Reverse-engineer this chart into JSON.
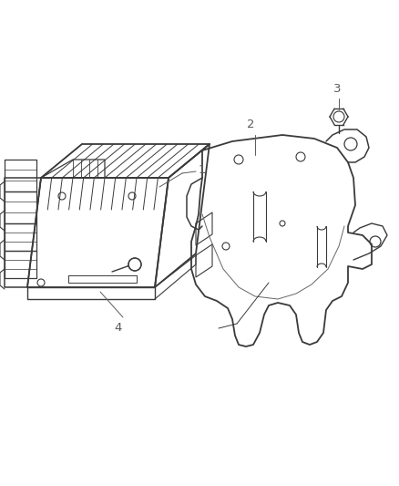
{
  "bg_color": "#ffffff",
  "line_color": "#3a3a3a",
  "label_color": "#5a5a5a",
  "figsize": [
    4.38,
    5.33
  ],
  "dpi": 100,
  "label_fontsize": 9.5
}
